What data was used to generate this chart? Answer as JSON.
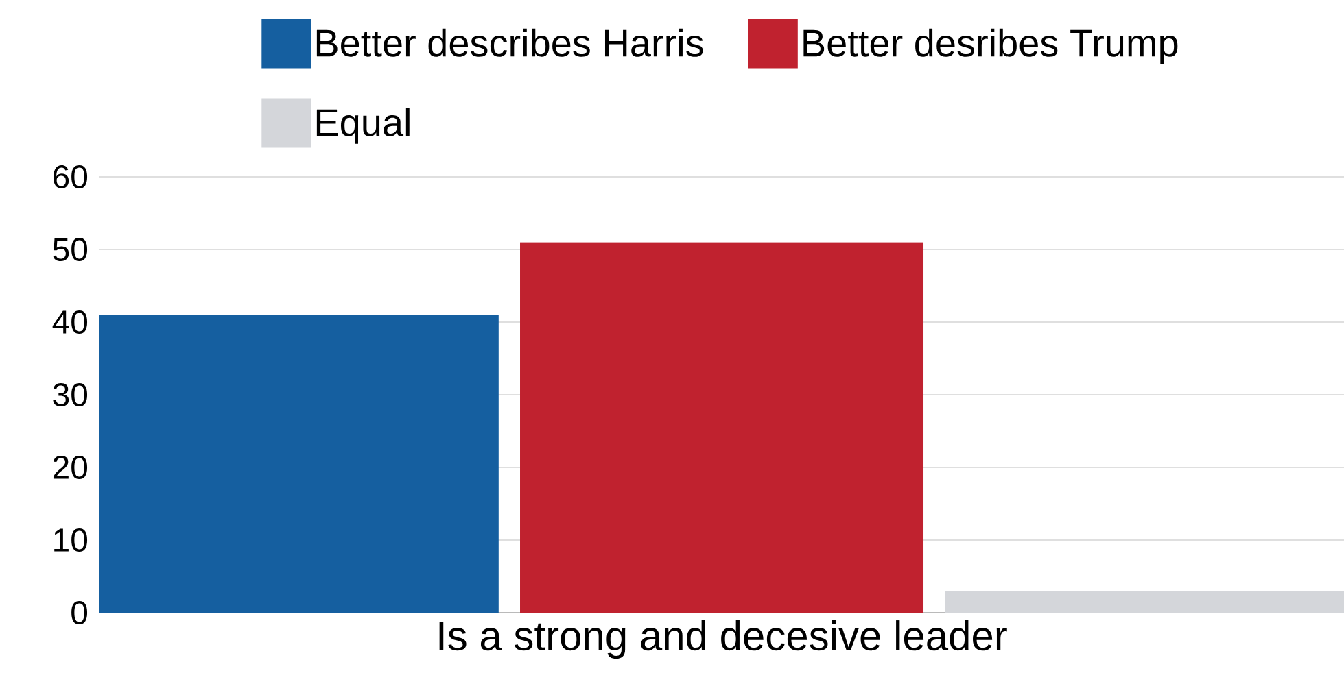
{
  "chart_data": {
    "type": "bar",
    "categories": [
      "Is a strong and decesive leader"
    ],
    "series": [
      {
        "name": "Better describes Harris",
        "color": "#155fa0",
        "values": [
          41
        ]
      },
      {
        "name": "Better desribes Trump",
        "color": "#c0222f",
        "values": [
          51
        ]
      },
      {
        "name": "Equal",
        "color": "#d4d6da",
        "values": [
          3
        ]
      }
    ],
    "ylim": [
      0,
      60
    ],
    "yticks": [
      0,
      10,
      20,
      30,
      40,
      50,
      60
    ],
    "grid": "y",
    "legend": "top"
  }
}
